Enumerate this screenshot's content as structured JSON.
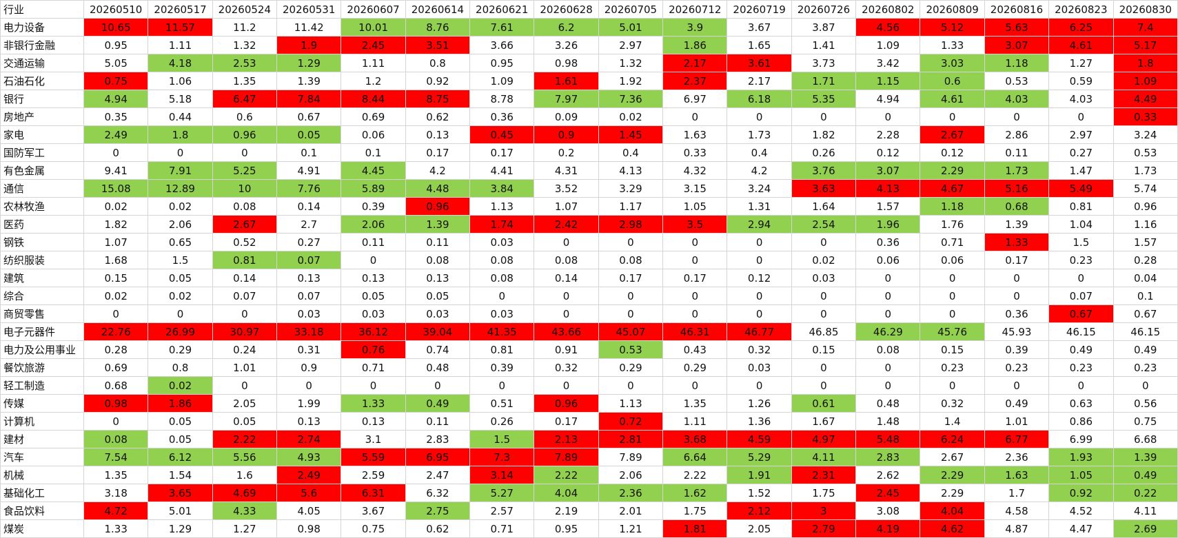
{
  "table": {
    "header": [
      "行业",
      "20260510",
      "20260517",
      "20260524",
      "20260531",
      "20260607",
      "20260614",
      "20260621",
      "20260628",
      "20260705",
      "20260712",
      "20260719",
      "20260726",
      "20260802",
      "20260809",
      "20260816",
      "20260823",
      "20260830"
    ],
    "rows": [
      [
        "电力设备",
        10.65,
        11.57,
        11.2,
        11.42,
        10.01,
        8.76,
        7.61,
        6.2,
        5.01,
        3.9,
        3.67,
        3.87,
        4.56,
        5.12,
        5.63,
        6.25,
        7.4
      ],
      [
        "非银行金融",
        0.95,
        1.11,
        1.32,
        1.9,
        2.45,
        3.51,
        3.66,
        3.26,
        2.97,
        1.86,
        1.65,
        1.41,
        1.09,
        1.33,
        3.07,
        4.61,
        5.17
      ],
      [
        "交通运输",
        5.05,
        4.18,
        2.53,
        1.29,
        1.11,
        0.8,
        0.95,
        0.98,
        1.32,
        2.17,
        3.61,
        3.73,
        3.42,
        3.03,
        1.18,
        1.27,
        1.8
      ],
      [
        "石油石化",
        0.75,
        1.06,
        1.35,
        1.39,
        1.2,
        0.92,
        1.09,
        1.61,
        1.92,
        2.37,
        2.17,
        1.71,
        1.15,
        0.6,
        0.53,
        0.59,
        1.09
      ],
      [
        "银行",
        4.94,
        5.18,
        6.47,
        7.84,
        8.44,
        8.75,
        8.78,
        7.97,
        7.36,
        6.97,
        6.18,
        5.35,
        4.94,
        4.61,
        4.03,
        4.03,
        4.49
      ],
      [
        "房地产",
        0.35,
        0.44,
        0.6,
        0.67,
        0.69,
        0.62,
        0.36,
        0.09,
        0.02,
        0,
        0,
        0,
        0,
        0,
        0,
        0,
        0.33
      ],
      [
        "家电",
        2.49,
        1.8,
        0.96,
        0.05,
        0.06,
        0.13,
        0.45,
        0.9,
        1.45,
        1.63,
        1.73,
        1.82,
        2.28,
        2.67,
        2.86,
        2.97,
        3.24
      ],
      [
        "国防军工",
        0,
        0,
        0,
        0.1,
        0.1,
        0.17,
        0.17,
        0.2,
        0.4,
        0.33,
        0.4,
        0.26,
        0.12,
        0.12,
        0.11,
        0.27,
        0.53
      ],
      [
        "有色金属",
        9.41,
        7.91,
        5.25,
        4.91,
        4.45,
        4.2,
        4.41,
        4.31,
        4.13,
        4.32,
        4.2,
        3.76,
        3.07,
        2.29,
        1.73,
        1.47,
        1.73
      ],
      [
        "通信",
        15.08,
        12.89,
        10,
        7.76,
        5.89,
        4.48,
        3.84,
        3.52,
        3.29,
        3.15,
        3.24,
        3.63,
        4.13,
        4.67,
        5.16,
        5.49,
        5.74
      ],
      [
        "农林牧渔",
        0.02,
        0.02,
        0.08,
        0.14,
        0.39,
        0.96,
        1.13,
        1.07,
        1.17,
        1.05,
        1.31,
        1.64,
        1.57,
        1.18,
        0.68,
        0.81,
        0.96
      ],
      [
        "医药",
        1.82,
        2.06,
        2.67,
        2.7,
        2.06,
        1.39,
        1.74,
        2.42,
        2.98,
        3.5,
        2.94,
        2.54,
        1.96,
        1.76,
        1.39,
        1.04,
        1.16
      ],
      [
        "钢铁",
        1.07,
        0.65,
        0.52,
        0.27,
        0.11,
        0.11,
        0.03,
        0,
        0,
        0,
        0,
        0,
        0.36,
        0.71,
        1.33,
        1.5,
        1.57
      ],
      [
        "纺织服装",
        1.68,
        1.5,
        0.81,
        0.07,
        0,
        0.08,
        0.08,
        0.08,
        0.08,
        0,
        0,
        0.02,
        0.06,
        0.06,
        0.17,
        0.23,
        0.28
      ],
      [
        "建筑",
        0.15,
        0.05,
        0.14,
        0.13,
        0.13,
        0.13,
        0.08,
        0.14,
        0.17,
        0.17,
        0.12,
        0.03,
        0,
        0,
        0,
        0,
        0.04
      ],
      [
        "综合",
        0.02,
        0.02,
        0.07,
        0.07,
        0.05,
        0.05,
        0,
        0,
        0,
        0,
        0,
        0,
        0,
        0,
        0,
        0.07,
        0.1
      ],
      [
        "商贸零售",
        0,
        0,
        0,
        0.03,
        0.03,
        0.03,
        0.03,
        0,
        0,
        0,
        0,
        0,
        0,
        0,
        0.36,
        0.67,
        0.67
      ],
      [
        "电子元器件",
        22.76,
        26.99,
        30.97,
        33.18,
        36.12,
        39.04,
        41.35,
        43.66,
        45.07,
        46.31,
        46.77,
        46.85,
        46.29,
        45.76,
        45.93,
        46.15,
        46.15
      ],
      [
        "电力及公用事业",
        0.28,
        0.29,
        0.24,
        0.31,
        0.76,
        0.74,
        0.81,
        0.91,
        0.53,
        0.43,
        0.32,
        0.15,
        0.08,
        0.15,
        0.39,
        0.49,
        0.49
      ],
      [
        "餐饮旅游",
        0.69,
        0.8,
        1.01,
        0.9,
        0.71,
        0.48,
        0.39,
        0.32,
        0.29,
        0.29,
        0.03,
        0,
        0,
        0.23,
        0.23,
        0.23,
        0.23
      ],
      [
        "轻工制造",
        0.68,
        0.02,
        0,
        0,
        0,
        0,
        0,
        0,
        0,
        0,
        0,
        0,
        0,
        0,
        0,
        0,
        0
      ],
      [
        "传媒",
        0.98,
        1.86,
        2.05,
        1.99,
        1.33,
        0.49,
        0.51,
        0.96,
        1.13,
        1.35,
        1.26,
        0.61,
        0.48,
        0.32,
        0.49,
        0.63,
        0.56
      ],
      [
        "计算机",
        0,
        0.05,
        0.05,
        0.13,
        0.13,
        0.11,
        0.26,
        0.17,
        0.72,
        1.11,
        1.36,
        1.67,
        1.48,
        1.4,
        1.01,
        0.86,
        0.75
      ],
      [
        "建材",
        0.08,
        0.05,
        2.22,
        2.74,
        3.1,
        2.83,
        1.5,
        2.13,
        2.81,
        3.68,
        4.59,
        4.97,
        5.48,
        6.24,
        6.77,
        6.99,
        6.68
      ],
      [
        "汽车",
        7.54,
        6.12,
        5.56,
        4.93,
        5.59,
        6.95,
        7.3,
        7.89,
        7.89,
        6.64,
        5.29,
        4.11,
        2.83,
        2.67,
        2.36,
        1.93,
        1.39
      ],
      [
        "机械",
        1.35,
        1.54,
        1.6,
        2.49,
        2.59,
        2.47,
        3.14,
        2.22,
        2.06,
        2.22,
        1.91,
        2.31,
        2.62,
        2.29,
        1.63,
        1.05,
        0.49
      ],
      [
        "基础化工",
        3.18,
        3.65,
        4.69,
        5.6,
        6.31,
        6.32,
        5.27,
        4.04,
        2.36,
        1.62,
        1.52,
        1.75,
        2.45,
        2.29,
        1.7,
        0.92,
        0.22
      ],
      [
        "食品饮料",
        4.72,
        5.01,
        4.33,
        4.05,
        3.67,
        2.75,
        2.57,
        2.19,
        2.01,
        1.75,
        2.12,
        3,
        3.08,
        4.04,
        4.58,
        4.52,
        4.11
      ],
      [
        "煤炭",
        1.33,
        1.29,
        1.27,
        0.98,
        0.75,
        0.62,
        0.71,
        0.95,
        1.21,
        1.81,
        2.05,
        2.79,
        4.19,
        4.62,
        4.87,
        4.47,
        2.69
      ]
    ],
    "fills": [
      [
        "#ff0000",
        "#ff0000",
        "#ffffff",
        "#ffffff",
        "#92d050",
        "#92d050",
        "#92d050",
        "#92d050",
        "#92d050",
        "#92d050",
        "#ffffff",
        "#ffffff",
        "#ff0000",
        "#ff0000",
        "#ff0000",
        "#ff0000",
        "#ff0000"
      ],
      [
        "#ffffff",
        "#ffffff",
        "#ffffff",
        "#ff0000",
        "#ff0000",
        "#ff0000",
        "#ffffff",
        "#ffffff",
        "#ffffff",
        "#92d050",
        "#ffffff",
        "#ffffff",
        "#ffffff",
        "#ffffff",
        "#ff0000",
        "#ff0000",
        "#ff0000"
      ],
      [
        "#ffffff",
        "#92d050",
        "#92d050",
        "#92d050",
        "#ffffff",
        "#ffffff",
        "#ffffff",
        "#ffffff",
        "#ffffff",
        "#ff0000",
        "#ff0000",
        "#ffffff",
        "#ffffff",
        "#92d050",
        "#92d050",
        "#ffffff",
        "#ff0000"
      ],
      [
        "#ff0000",
        "#ffffff",
        "#ffffff",
        "#ffffff",
        "#ffffff",
        "#ffffff",
        "#ffffff",
        "#ff0000",
        "#ffffff",
        "#ff0000",
        "#ffffff",
        "#92d050",
        "#92d050",
        "#92d050",
        "#ffffff",
        "#ffffff",
        "#ff0000"
      ],
      [
        "#92d050",
        "#ffffff",
        "#ff0000",
        "#ff0000",
        "#ff0000",
        "#ff0000",
        "#ffffff",
        "#92d050",
        "#92d050",
        "#ffffff",
        "#92d050",
        "#92d050",
        "#ffffff",
        "#92d050",
        "#92d050",
        "#ffffff",
        "#ff0000"
      ],
      [
        "#ffffff",
        "#ffffff",
        "#ffffff",
        "#ffffff",
        "#ffffff",
        "#ffffff",
        "#ffffff",
        "#ffffff",
        "#ffffff",
        "#ffffff",
        "#ffffff",
        "#ffffff",
        "#ffffff",
        "#ffffff",
        "#ffffff",
        "#ffffff",
        "#ff0000"
      ],
      [
        "#92d050",
        "#92d050",
        "#92d050",
        "#92d050",
        "#ffffff",
        "#ffffff",
        "#ff0000",
        "#ff0000",
        "#ff0000",
        "#ffffff",
        "#ffffff",
        "#ffffff",
        "#ffffff",
        "#ff0000",
        "#ffffff",
        "#ffffff",
        "#ffffff"
      ],
      [
        "#ffffff",
        "#ffffff",
        "#ffffff",
        "#ffffff",
        "#ffffff",
        "#ffffff",
        "#ffffff",
        "#ffffff",
        "#ffffff",
        "#ffffff",
        "#ffffff",
        "#ffffff",
        "#ffffff",
        "#ffffff",
        "#ffffff",
        "#ffffff",
        "#ffffff"
      ],
      [
        "#ffffff",
        "#92d050",
        "#92d050",
        "#ffffff",
        "#92d050",
        "#ffffff",
        "#ffffff",
        "#ffffff",
        "#ffffff",
        "#ffffff",
        "#ffffff",
        "#92d050",
        "#92d050",
        "#92d050",
        "#92d050",
        "#ffffff",
        "#ffffff"
      ],
      [
        "#92d050",
        "#92d050",
        "#92d050",
        "#92d050",
        "#92d050",
        "#92d050",
        "#92d050",
        "#ffffff",
        "#ffffff",
        "#ffffff",
        "#ffffff",
        "#ff0000",
        "#ff0000",
        "#ff0000",
        "#ff0000",
        "#ff0000",
        "#ffffff"
      ],
      [
        "#ffffff",
        "#ffffff",
        "#ffffff",
        "#ffffff",
        "#ffffff",
        "#ff0000",
        "#ffffff",
        "#ffffff",
        "#ffffff",
        "#ffffff",
        "#ffffff",
        "#ffffff",
        "#ffffff",
        "#92d050",
        "#92d050",
        "#ffffff",
        "#ffffff"
      ],
      [
        "#ffffff",
        "#ffffff",
        "#ff0000",
        "#ffffff",
        "#92d050",
        "#92d050",
        "#ff0000",
        "#ff0000",
        "#ff0000",
        "#ff0000",
        "#92d050",
        "#92d050",
        "#92d050",
        "#ffffff",
        "#ffffff",
        "#ffffff",
        "#ffffff"
      ],
      [
        "#ffffff",
        "#ffffff",
        "#ffffff",
        "#ffffff",
        "#ffffff",
        "#ffffff",
        "#ffffff",
        "#ffffff",
        "#ffffff",
        "#ffffff",
        "#ffffff",
        "#ffffff",
        "#ffffff",
        "#ffffff",
        "#ff0000",
        "#ffffff",
        "#ffffff"
      ],
      [
        "#ffffff",
        "#ffffff",
        "#92d050",
        "#92d050",
        "#ffffff",
        "#ffffff",
        "#ffffff",
        "#ffffff",
        "#ffffff",
        "#ffffff",
        "#ffffff",
        "#ffffff",
        "#ffffff",
        "#ffffff",
        "#ffffff",
        "#ffffff",
        "#ffffff"
      ],
      [
        "#ffffff",
        "#ffffff",
        "#ffffff",
        "#ffffff",
        "#ffffff",
        "#ffffff",
        "#ffffff",
        "#ffffff",
        "#ffffff",
        "#ffffff",
        "#ffffff",
        "#ffffff",
        "#ffffff",
        "#ffffff",
        "#ffffff",
        "#ffffff",
        "#ffffff"
      ],
      [
        "#ffffff",
        "#ffffff",
        "#ffffff",
        "#ffffff",
        "#ffffff",
        "#ffffff",
        "#ffffff",
        "#ffffff",
        "#ffffff",
        "#ffffff",
        "#ffffff",
        "#ffffff",
        "#ffffff",
        "#ffffff",
        "#ffffff",
        "#ffffff",
        "#ffffff"
      ],
      [
        "#ffffff",
        "#ffffff",
        "#ffffff",
        "#ffffff",
        "#ffffff",
        "#ffffff",
        "#ffffff",
        "#ffffff",
        "#ffffff",
        "#ffffff",
        "#ffffff",
        "#ffffff",
        "#ffffff",
        "#ffffff",
        "#ffffff",
        "#ff0000",
        "#ffffff"
      ],
      [
        "#ff0000",
        "#ff0000",
        "#ff0000",
        "#ff0000",
        "#ff0000",
        "#ff0000",
        "#ff0000",
        "#ff0000",
        "#ff0000",
        "#ff0000",
        "#ff0000",
        "#ffffff",
        "#92d050",
        "#92d050",
        "#ffffff",
        "#ffffff",
        "#ffffff"
      ],
      [
        "#ffffff",
        "#ffffff",
        "#ffffff",
        "#ffffff",
        "#ff0000",
        "#ffffff",
        "#ffffff",
        "#ffffff",
        "#92d050",
        "#ffffff",
        "#ffffff",
        "#ffffff",
        "#ffffff",
        "#ffffff",
        "#ffffff",
        "#ffffff",
        "#ffffff"
      ],
      [
        "#ffffff",
        "#ffffff",
        "#ffffff",
        "#ffffff",
        "#ffffff",
        "#ffffff",
        "#ffffff",
        "#ffffff",
        "#ffffff",
        "#ffffff",
        "#ffffff",
        "#ffffff",
        "#ffffff",
        "#ffffff",
        "#ffffff",
        "#ffffff",
        "#ffffff"
      ],
      [
        "#ffffff",
        "#92d050",
        "#ffffff",
        "#ffffff",
        "#ffffff",
        "#ffffff",
        "#ffffff",
        "#ffffff",
        "#ffffff",
        "#ffffff",
        "#ffffff",
        "#ffffff",
        "#ffffff",
        "#ffffff",
        "#ffffff",
        "#ffffff",
        "#ffffff"
      ],
      [
        "#ff0000",
        "#ff0000",
        "#ffffff",
        "#ffffff",
        "#92d050",
        "#92d050",
        "#ffffff",
        "#ff0000",
        "#ffffff",
        "#ffffff",
        "#ffffff",
        "#92d050",
        "#ffffff",
        "#ffffff",
        "#ffffff",
        "#ffffff",
        "#ffffff"
      ],
      [
        "#ffffff",
        "#ffffff",
        "#ffffff",
        "#ffffff",
        "#ffffff",
        "#ffffff",
        "#ffffff",
        "#ffffff",
        "#ff0000",
        "#ffffff",
        "#ffffff",
        "#ffffff",
        "#ffffff",
        "#ffffff",
        "#ffffff",
        "#ffffff",
        "#ffffff"
      ],
      [
        "#92d050",
        "#ffffff",
        "#ff0000",
        "#ff0000",
        "#ffffff",
        "#ffffff",
        "#92d050",
        "#ff0000",
        "#ff0000",
        "#ff0000",
        "#ff0000",
        "#ff0000",
        "#ff0000",
        "#ff0000",
        "#ff0000",
        "#ffffff",
        "#ffffff"
      ],
      [
        "#92d050",
        "#92d050",
        "#92d050",
        "#92d050",
        "#ff0000",
        "#ff0000",
        "#ff0000",
        "#ff0000",
        "#ffffff",
        "#92d050",
        "#92d050",
        "#92d050",
        "#92d050",
        "#ffffff",
        "#ffffff",
        "#92d050",
        "#92d050"
      ],
      [
        "#ffffff",
        "#ffffff",
        "#ffffff",
        "#ff0000",
        "#ffffff",
        "#ffffff",
        "#ff0000",
        "#92d050",
        "#ffffff",
        "#ffffff",
        "#92d050",
        "#ff0000",
        "#ffffff",
        "#92d050",
        "#92d050",
        "#92d050",
        "#92d050"
      ],
      [
        "#ffffff",
        "#ff0000",
        "#ff0000",
        "#ff0000",
        "#ff0000",
        "#ffffff",
        "#92d050",
        "#92d050",
        "#92d050",
        "#92d050",
        "#ffffff",
        "#ffffff",
        "#ff0000",
        "#ffffff",
        "#ffffff",
        "#92d050",
        "#92d050"
      ],
      [
        "#ff0000",
        "#ffffff",
        "#92d050",
        "#ffffff",
        "#ffffff",
        "#92d050",
        "#ffffff",
        "#ffffff",
        "#ffffff",
        "#ffffff",
        "#ff0000",
        "#ff0000",
        "#ffffff",
        "#ff0000",
        "#ffffff",
        "#ffffff",
        "#ffffff"
      ],
      [
        "#ffffff",
        "#ffffff",
        "#ffffff",
        "#ffffff",
        "#ffffff",
        "#ffffff",
        "#ffffff",
        "#ffffff",
        "#ffffff",
        "#ff0000",
        "#ffffff",
        "#ff0000",
        "#ff0000",
        "#ff0000",
        "#ffffff",
        "#ffffff",
        "#92d050"
      ]
    ]
  }
}
